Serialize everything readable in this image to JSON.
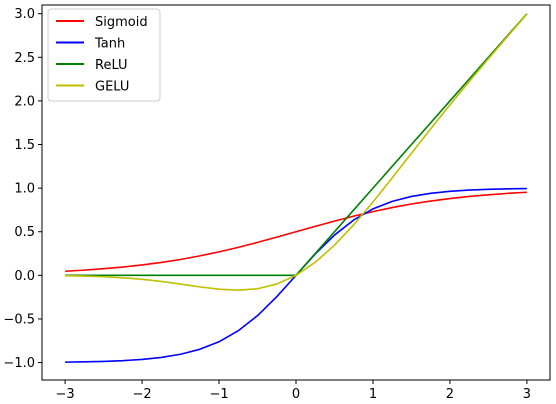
{
  "chart_data": {
    "type": "line",
    "title": "",
    "xlabel": "",
    "ylabel": "",
    "xlim": [
      -3.3,
      3.3
    ],
    "ylim": [
      -1.2,
      3.1
    ],
    "xticks": [
      -3,
      -2,
      -1,
      0,
      1,
      2,
      3
    ],
    "xtick_labels": [
      "−3",
      "−2",
      "−1",
      "0",
      "1",
      "2",
      "3"
    ],
    "yticks": [
      -1.0,
      -0.5,
      0.0,
      0.5,
      1.0,
      1.5,
      2.0,
      2.5,
      3.0
    ],
    "ytick_labels": [
      "−1.0",
      "−0.5",
      "0.0",
      "0.5",
      "1.0",
      "1.5",
      "2.0",
      "2.5",
      "3.0"
    ],
    "grid": false,
    "legend_position": "top-left",
    "x": [
      -3.0,
      -2.75,
      -2.5,
      -2.25,
      -2.0,
      -1.75,
      -1.5,
      -1.25,
      -1.0,
      -0.75,
      -0.5,
      -0.25,
      0.0,
      0.25,
      0.5,
      0.75,
      1.0,
      1.25,
      1.5,
      1.75,
      2.0,
      2.25,
      2.5,
      2.75,
      3.0
    ],
    "series": [
      {
        "name": "Sigmoid",
        "color": "#ff0000",
        "values": [
          0.047,
          0.06,
          0.076,
          0.095,
          0.119,
          0.148,
          0.182,
          0.223,
          0.269,
          0.321,
          0.378,
          0.438,
          0.5,
          0.562,
          0.622,
          0.679,
          0.731,
          0.777,
          0.818,
          0.852,
          0.881,
          0.905,
          0.924,
          0.94,
          0.953
        ]
      },
      {
        "name": "Tanh",
        "color": "#0000ff",
        "values": [
          -0.995,
          -0.992,
          -0.987,
          -0.978,
          -0.964,
          -0.941,
          -0.905,
          -0.848,
          -0.762,
          -0.635,
          -0.462,
          -0.245,
          0.0,
          0.245,
          0.462,
          0.635,
          0.762,
          0.848,
          0.905,
          0.941,
          0.964,
          0.978,
          0.987,
          0.992,
          0.995
        ]
      },
      {
        "name": "ReLU",
        "color": "#008000",
        "values": [
          0.0,
          0.0,
          0.0,
          0.0,
          0.0,
          0.0,
          0.0,
          0.0,
          0.0,
          0.0,
          0.0,
          0.0,
          0.0,
          0.25,
          0.5,
          0.75,
          1.0,
          1.25,
          1.5,
          1.75,
          2.0,
          2.25,
          2.5,
          2.75,
          3.0
        ]
      },
      {
        "name": "GELU",
        "color": "#bfbf00",
        "values": [
          -0.004,
          -0.008,
          -0.016,
          -0.028,
          -0.045,
          -0.07,
          -0.1,
          -0.132,
          -0.159,
          -0.17,
          -0.154,
          -0.1,
          0.0,
          0.15,
          0.346,
          0.58,
          0.841,
          1.118,
          1.4,
          1.68,
          1.955,
          2.222,
          2.484,
          2.742,
          2.996
        ]
      }
    ]
  }
}
